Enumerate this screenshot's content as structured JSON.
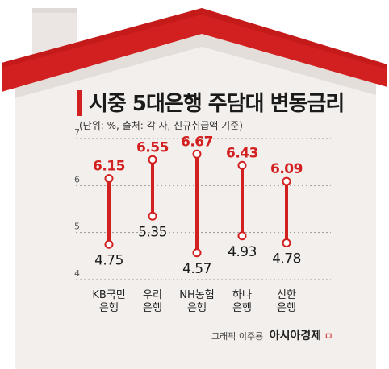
{
  "title": "시중 5대은행 주담대 변동금리",
  "subtitle": "(단위: %, 출처: 각 사, 신규취급액 기준)",
  "credit": {
    "text": "그래픽 이주룡",
    "brand": "아시아경제",
    "mark": "ㅁ"
  },
  "colors": {
    "accent": "#d21f1f",
    "roof": "#d21f1f",
    "wall": "#f3efec",
    "shadow": "#e4dedb",
    "chimney": "#ebe6e3"
  },
  "chart_data": {
    "type": "range",
    "title": "시중 5대은행 주담대 변동금리",
    "ylim": [
      4,
      7
    ],
    "yticks": [
      4,
      5,
      6,
      7
    ],
    "ytick_labels": [
      "4",
      "5",
      "6",
      "7"
    ],
    "categories": [
      [
        "KB국민",
        "은행"
      ],
      [
        "우리",
        "은행"
      ],
      [
        "NH농협",
        "은행"
      ],
      [
        "하나",
        "은행"
      ],
      [
        "신한",
        "은행"
      ]
    ],
    "high": [
      6.15,
      6.55,
      6.67,
      6.43,
      6.09
    ],
    "low": [
      4.75,
      5.35,
      4.57,
      4.93,
      4.78
    ],
    "high_labels": [
      "6.15",
      "6.55",
      "6.67",
      "6.43",
      "6.09"
    ],
    "low_labels": [
      "4.75",
      "5.35",
      "4.57",
      "4.93",
      "4.78"
    ]
  }
}
